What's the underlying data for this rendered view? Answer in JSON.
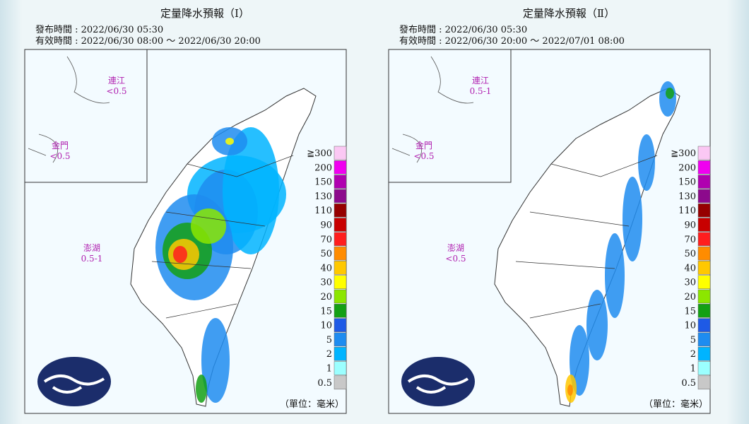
{
  "panels": [
    {
      "title": "定量降水預報（Ⅰ）",
      "issued": "發布時間 : 2022/06/30 05:30",
      "valid": "有效時間 : 2022/06/30 08:00 ～ 2022/06/30 20:00",
      "islands": [
        {
          "name": "連江",
          "amount": "<0.5"
        },
        {
          "name": "金門",
          "amount": "<0.5"
        },
        {
          "name": "澎湖",
          "amount": "0.5-1"
        }
      ],
      "unit": "（單位：毫米）"
    },
    {
      "title": "定量降水預報（Ⅱ）",
      "issued": "發布時間 : 2022/06/30 05:30",
      "valid": "有效時間 : 2022/06/30 20:00 ～ 2022/07/01 08:00",
      "islands": [
        {
          "name": "連江",
          "amount": "0.5-1"
        },
        {
          "name": "金門",
          "amount": "<0.5"
        },
        {
          "name": "澎湖",
          "amount": "<0.5"
        }
      ],
      "unit": "（單位：毫米）"
    }
  ],
  "legend": [
    {
      "label": "≧300",
      "color": "#fbc8f4"
    },
    {
      "label": "200",
      "color": "#f000f0"
    },
    {
      "label": "150",
      "color": "#b000b0"
    },
    {
      "label": "130",
      "color": "#8c0a8c"
    },
    {
      "label": "110",
      "color": "#960000"
    },
    {
      "label": "90",
      "color": "#c80000"
    },
    {
      "label": "70",
      "color": "#ff1e1e"
    },
    {
      "label": "50",
      "color": "#ff8c00"
    },
    {
      "label": "40",
      "color": "#ffc800"
    },
    {
      "label": "30",
      "color": "#ffff00"
    },
    {
      "label": "20",
      "color": "#8ce600"
    },
    {
      "label": "15",
      "color": "#14a014"
    },
    {
      "label": "10",
      "color": "#1e5ae6"
    },
    {
      "label": "5",
      "color": "#1e8cf0"
    },
    {
      "label": "2",
      "color": "#00b4ff"
    },
    {
      "label": "1",
      "color": "#9bffff"
    },
    {
      "label": "0.5",
      "color": "#c8c8c8"
    }
  ]
}
